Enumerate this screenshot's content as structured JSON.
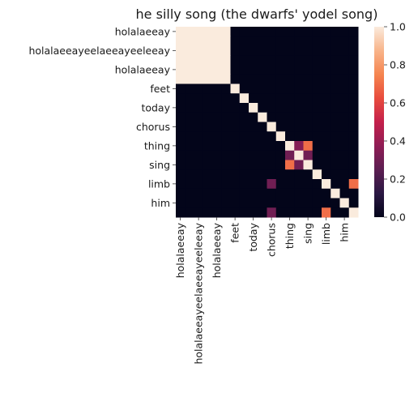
{
  "chart_data": {
    "type": "heatmap",
    "title": "he silly song (the dwarfs' yodel song)",
    "xlabel": "",
    "ylabel": "",
    "x_labels": [
      "holalaeeay",
      "holalaeeayeelaeeayeeleeay",
      "holalaeeay",
      "feet",
      "today",
      "chorus",
      "thing",
      "sing",
      "limb",
      "him"
    ],
    "y_labels": [
      "holalaeeay",
      "holalaeeayeelaeeayeeleeay",
      "holalaeeay",
      "feet",
      "today",
      "chorus",
      "thing",
      "sing",
      "limb",
      "him"
    ],
    "cells": [
      "",
      "",
      "",
      "",
      "",
      "",
      "",
      "",
      "",
      "",
      "",
      "",
      "",
      "",
      "",
      "",
      "",
      "",
      "",
      "",
      "",
      "",
      "",
      "",
      "",
      "",
      "",
      "",
      "",
      "",
      "",
      "",
      "",
      "",
      "",
      "",
      "",
      "",
      "",
      "",
      "",
      "",
      "",
      "",
      "",
      "",
      "",
      "",
      "",
      "",
      "",
      "",
      "",
      "",
      "",
      "",
      "",
      "",
      "",
      "",
      "",
      "",
      "",
      "",
      "",
      "",
      "",
      "",
      "",
      "",
      "",
      "",
      "",
      "",
      "",
      "",
      "",
      "",
      "",
      "",
      "",
      "",
      "",
      "",
      "",
      "",
      "",
      "",
      "",
      "",
      "",
      "",
      "",
      "",
      "",
      "",
      "",
      "",
      "",
      "",
      "",
      "",
      "",
      "",
      "",
      "",
      "",
      "",
      "",
      "",
      "",
      "",
      "",
      "",
      "",
      "",
      "",
      "",
      "",
      "",
      "",
      "",
      "",
      "",
      "",
      "",
      "",
      "",
      "",
      "",
      "",
      "",
      "",
      "",
      "",
      "",
      "",
      "",
      "",
      "",
      "",
      "",
      "",
      "",
      "",
      "",
      "",
      "",
      "",
      "",
      "",
      "",
      "",
      "",
      "",
      "",
      "",
      "",
      "",
      "",
      "",
      "",
      "",
      "",
      "",
      "",
      "",
      "",
      "",
      "",
      "",
      "",
      "",
      "",
      "",
      "",
      "",
      "",
      "",
      "",
      "",
      "",
      "",
      "",
      "",
      "",
      "",
      "",
      "",
      "",
      "",
      "",
      "",
      "",
      "",
      "",
      "",
      "",
      "",
      ""
    ],
    "rows": 20,
    "cols": 20,
    "values": [
      [
        1,
        1,
        1,
        1,
        1,
        1,
        0,
        0,
        0,
        0,
        0,
        0,
        0,
        0,
        0,
        0,
        0,
        0,
        0,
        0
      ],
      [
        1,
        1,
        1,
        1,
        1,
        1,
        0,
        0,
        0,
        0,
        0,
        0,
        0,
        0,
        0,
        0,
        0,
        0,
        0,
        0
      ],
      [
        1,
        1,
        1,
        1,
        1,
        1,
        0,
        0,
        0,
        0,
        0,
        0,
        0,
        0,
        0,
        0,
        0,
        0,
        0,
        0
      ],
      [
        1,
        1,
        1,
        1,
        1,
        1,
        0,
        0,
        0,
        0,
        0,
        0,
        0,
        0,
        0,
        0,
        0,
        0,
        0,
        0
      ],
      [
        1,
        1,
        1,
        1,
        1,
        1,
        0,
        0,
        0,
        0,
        0,
        0,
        0,
        0,
        0,
        0,
        0,
        0,
        0,
        0
      ],
      [
        1,
        1,
        1,
        1,
        1,
        1,
        0,
        0,
        0,
        0,
        0,
        0,
        0,
        0,
        0,
        0,
        0,
        0,
        0,
        0
      ],
      [
        0,
        0,
        0,
        0,
        0,
        0,
        1,
        0,
        0,
        0,
        0,
        0,
        0,
        0,
        0,
        0,
        0,
        0,
        0,
        0
      ],
      [
        0,
        0,
        0,
        0,
        0,
        0,
        0,
        1,
        0,
        0,
        0,
        0,
        0,
        0,
        0,
        0,
        0,
        0,
        0,
        0
      ],
      [
        0,
        0,
        0,
        0,
        0,
        0,
        0,
        0,
        1,
        0,
        0,
        0,
        0,
        0,
        0,
        0,
        0,
        0,
        0,
        0
      ],
      [
        0,
        0,
        0,
        0,
        0,
        0,
        0,
        0,
        0,
        1,
        0,
        0,
        0,
        0,
        0,
        0,
        0,
        0,
        0,
        0
      ],
      [
        0,
        0,
        0,
        0,
        0,
        0,
        0,
        0,
        0,
        0,
        1,
        0,
        0,
        0,
        0,
        0,
        0,
        0,
        0,
        0
      ],
      [
        0,
        0,
        0,
        0,
        0,
        0,
        0,
        0,
        0,
        0,
        0,
        1,
        0,
        0,
        0,
        0,
        0,
        0,
        0,
        0
      ],
      [
        0,
        0,
        0,
        0,
        0,
        0,
        0,
        0,
        0,
        0,
        0,
        0,
        1,
        0.35,
        0.7,
        0,
        0,
        0,
        0,
        0
      ],
      [
        0,
        0,
        0,
        0,
        0,
        0,
        0,
        0,
        0,
        0,
        0,
        0,
        0.3,
        1,
        0.3,
        0,
        0,
        0,
        0,
        0
      ],
      [
        0,
        0,
        0,
        0,
        0,
        0,
        0,
        0,
        0,
        0,
        0,
        0,
        0.7,
        0.3,
        1,
        0,
        0,
        0,
        0,
        0
      ],
      [
        0,
        0,
        0,
        0,
        0,
        0,
        0,
        0,
        0,
        0,
        0,
        0,
        0,
        0,
        0,
        1,
        0,
        0,
        0,
        0
      ],
      [
        0,
        0,
        0,
        0,
        0,
        0,
        0,
        0,
        0,
        0,
        0.3,
        0,
        0,
        0,
        0,
        0,
        1,
        0,
        0,
        0.7
      ],
      [
        0,
        0,
        0,
        0,
        0,
        0,
        0,
        0,
        0,
        0,
        0,
        0,
        0,
        0,
        0,
        0,
        0,
        1,
        0,
        0
      ],
      [
        0,
        0,
        0,
        0,
        0,
        0,
        0,
        0,
        0,
        0,
        0,
        0,
        0,
        0,
        0,
        0,
        0,
        0,
        1,
        0
      ],
      [
        0,
        0,
        0,
        0,
        0,
        0,
        0,
        0,
        0,
        0,
        0.3,
        0,
        0,
        0,
        0,
        0,
        0.7,
        0,
        0,
        1
      ]
    ],
    "colorbar": {
      "min": 0,
      "max": 1,
      "ticks": [
        "0.0",
        "0.2",
        "0.4",
        "0.6",
        "0.8",
        "1.0"
      ],
      "tick_values": [
        0,
        0.2,
        0.4,
        0.6,
        0.8,
        1
      ],
      "colormap": "rocket",
      "stops": [
        "#03051a",
        "#2b1843",
        "#5c1e52",
        "#8f1d55",
        "#c4204b",
        "#e84c3d",
        "#f5854f",
        "#f8b48a",
        "#faebdd"
      ]
    }
  }
}
